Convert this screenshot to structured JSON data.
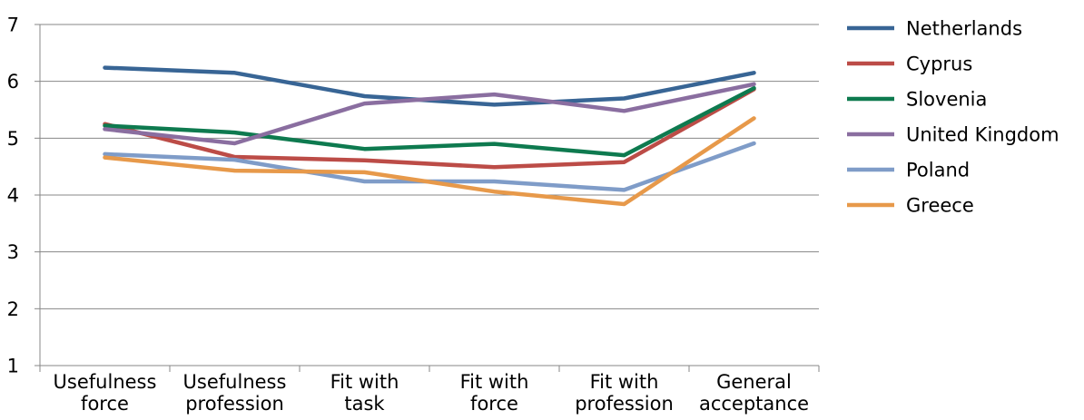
{
  "chart_data": {
    "type": "line",
    "title": "",
    "xlabel": "",
    "ylabel": "",
    "ylim": [
      1,
      7
    ],
    "yticks": [
      1,
      2,
      3,
      4,
      5,
      6,
      7
    ],
    "grid": "horizontal",
    "legend_position": "right",
    "categories": [
      [
        "Usefulness",
        "force"
      ],
      [
        "Usefulness",
        "profession"
      ],
      [
        "Fit with",
        "task"
      ],
      [
        "Fit with",
        "force"
      ],
      [
        "Fit with",
        "profession"
      ],
      [
        "General",
        "acceptance"
      ]
    ],
    "series": [
      {
        "name": "Netherlands",
        "color": "#386595",
        "values": [
          6.24,
          6.15,
          5.74,
          5.59,
          5.7,
          6.15
        ]
      },
      {
        "name": "Cyprus",
        "color": "#BC4C47",
        "values": [
          5.25,
          4.67,
          4.61,
          4.49,
          4.58,
          5.86
        ]
      },
      {
        "name": "Slovenia",
        "color": "#0E7A4F",
        "values": [
          5.22,
          5.1,
          4.81,
          4.9,
          4.7,
          5.88
        ]
      },
      {
        "name": "United Kingdom",
        "color": "#8A6EA0",
        "values": [
          5.16,
          4.91,
          5.61,
          5.77,
          5.48,
          5.95
        ]
      },
      {
        "name": "Poland",
        "color": "#7F9CC8",
        "values": [
          4.72,
          4.62,
          4.24,
          4.24,
          4.09,
          4.91
        ]
      },
      {
        "name": "Greece",
        "color": "#E7994A",
        "values": [
          4.66,
          4.43,
          4.4,
          4.06,
          3.84,
          5.35
        ]
      }
    ]
  }
}
